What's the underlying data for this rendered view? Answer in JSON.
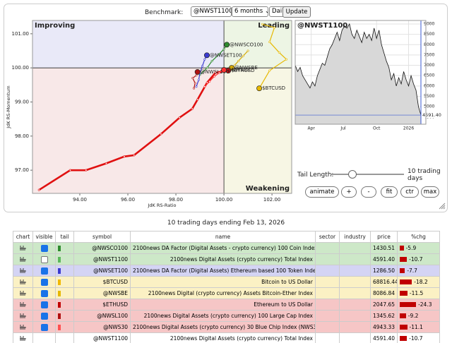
{
  "controls": {
    "benchmark_label": "Benchmark:",
    "benchmark_value": "@NWST1100",
    "period": "6 months",
    "interval": "Daily",
    "update": "Update",
    "tail_label": "Tail Length:",
    "tail_value": "10 trading days",
    "buttons": [
      "animate",
      "+",
      "-",
      "fit",
      "ctr",
      "max"
    ]
  },
  "chart_data": [
    {
      "type": "rrg",
      "xlabel": "JdK RS-Ratio",
      "ylabel": "JdK RS-Momentum",
      "quadrants": {
        "improving": "Improving",
        "leading": "Leading",
        "weakening": "Weakening"
      },
      "xlim": [
        92.03,
        102.82
      ],
      "ylim": [
        96.32,
        101.39
      ],
      "xticks": [
        {
          "value": 94,
          "label": "94.00"
        },
        {
          "value": 96,
          "label": "96.00"
        },
        {
          "value": 98,
          "label": "98.00"
        },
        {
          "value": 100,
          "label": "100.00"
        },
        {
          "value": 102,
          "label": "102.00"
        }
      ],
      "yticks": [
        {
          "value": 97,
          "label": "97.00"
        },
        {
          "value": 98,
          "label": "98.00"
        },
        {
          "value": 99,
          "label": "99.00"
        },
        {
          "value": 100,
          "label": "100.00"
        },
        {
          "value": 101,
          "label": "101.00"
        }
      ],
      "series": [
        {
          "name": "@NWSCO100",
          "color": "#2e8b2e",
          "x": [
            99.0,
            99.3,
            99.5,
            99.8,
            100.0,
            100.12
          ],
          "y": [
            99.8,
            100.0,
            100.2,
            100.4,
            100.55,
            100.68
          ]
        },
        {
          "name": "@NWSET100",
          "color": "#3a3ad0",
          "x": [
            98.85,
            98.95,
            99.0,
            99.1,
            99.2,
            99.29
          ],
          "y": [
            99.45,
            99.65,
            99.85,
            100.05,
            100.25,
            100.37
          ]
        },
        {
          "name": "$BTCUSD",
          "color": "#e6b800",
          "x": [
            101.6,
            102.1,
            101.9,
            102.3,
            102.6,
            101.9,
            101.47
          ],
          "y": [
            101.28,
            101.18,
            100.76,
            100.45,
            100.25,
            99.92,
            99.4
          ]
        },
        {
          "name": "@NWSBE",
          "color": "#d4a800",
          "x": [
            101.0,
            100.8,
            100.6,
            100.45,
            100.32
          ],
          "y": [
            100.5,
            100.35,
            100.2,
            100.08,
            100.0
          ]
        },
        {
          "name": "$ETHUSD",
          "color": "#e01010",
          "x": [
            92.3,
            93.6,
            94.26,
            95.1,
            95.85,
            96.26,
            97.38,
            98.15,
            98.68,
            98.9,
            99.3,
            99.65,
            100.18
          ],
          "y": [
            96.42,
            97.0,
            97.0,
            97.2,
            97.4,
            97.44,
            98.06,
            98.54,
            98.8,
            99.07,
            99.57,
            99.86,
            99.92
          ]
        },
        {
          "name": "@NWSL100",
          "color": "#b01010",
          "x": [
            98.75,
            98.8,
            98.7,
            98.85,
            98.9
          ],
          "y": [
            99.4,
            99.55,
            99.7,
            99.78,
            99.88
          ]
        },
        {
          "name": "@NWS30",
          "color": "#ff3030",
          "x": [
            99.2,
            99.4,
            99.6,
            99.8,
            100.0
          ],
          "y": [
            99.45,
            99.6,
            99.75,
            99.85,
            99.94
          ]
        }
      ]
    },
    {
      "type": "line",
      "title": "@NWST1100",
      "color": "#111111",
      "xlim": [
        0,
        51
      ],
      "ylim": [
        4150,
        9170
      ],
      "xticks": [
        {
          "value": 6.5,
          "label": "Apr"
        },
        {
          "value": 19.5,
          "label": "Jul"
        },
        {
          "value": 33,
          "label": "Oct"
        },
        {
          "value": 46,
          "label": "2026"
        }
      ],
      "yticks": [
        4500,
        5000,
        5500,
        6000,
        6500,
        7000,
        7500,
        8000,
        8500,
        9000
      ],
      "values": [
        7000,
        6700,
        6900,
        6500,
        6300,
        6100,
        5900,
        6200,
        6000,
        6500,
        6800,
        7100,
        7000,
        7400,
        7800,
        8000,
        8300,
        8600,
        8200,
        8700,
        8900,
        8800,
        9000,
        8500,
        8300,
        8700,
        8400,
        8100,
        8600,
        8300,
        8500,
        8200,
        8800,
        8300,
        8700,
        8000,
        7600,
        7200,
        6900,
        6300,
        6600,
        6000,
        6400,
        6100,
        6700,
        6300,
        6000,
        6500,
        6100,
        5800,
        5000,
        4591.4
      ],
      "last_value_label": "4591.40"
    }
  ],
  "table": {
    "caption": "10 trading days ending Feb 13, 2026",
    "headers": [
      "chart",
      "visible",
      "tail",
      "symbol",
      "name",
      "sector",
      "industry",
      "price",
      "%chg"
    ],
    "rows": [
      {
        "symbol": "@NWSCO100",
        "name": "2100news DA Factor (Digital Assets - crypto currency) 100 Coin Index",
        "price": "1430.51",
        "chg": -5.9,
        "visible": true,
        "bg": "#cde8c8",
        "tail_color": "#2e8b2e"
      },
      {
        "symbol": "@NWST1100",
        "name": "2100news Digital Assets (crypto currency) Total Index",
        "price": "4591.40",
        "chg": -10.7,
        "visible": false,
        "bg": "#cde8c8",
        "tail_color": "#5cb85c"
      },
      {
        "symbol": "@NWSET100",
        "name": "2100news DA Factor (Digital Assets) Ethereum based 100 Token Index",
        "price": "1286.50",
        "chg": -7.7,
        "visible": true,
        "bg": "#d4d4f4",
        "tail_color": "#3a3ad0"
      },
      {
        "symbol": "$BTCUSD",
        "name": "Bitcoin to US Dollar",
        "price": "68816.44",
        "chg": -18.2,
        "visible": true,
        "bg": "#fbf1c4",
        "tail_color": "#f0b800"
      },
      {
        "symbol": "@NWSBE",
        "name": "2100news Digital (crypto currency) Assets Bitcoin-Ether Index",
        "price": "8086.84",
        "chg": -11.5,
        "visible": true,
        "bg": "#fbf1c4",
        "tail_color": "#e6b800"
      },
      {
        "symbol": "$ETHUSD",
        "name": "Ethereum to US Dollar",
        "price": "2047.65",
        "chg": -24.3,
        "visible": true,
        "bg": "#f6c6c6",
        "tail_color": "#c00000"
      },
      {
        "symbol": "@NWSL100",
        "name": "2100news Digital Assets (crypto currency) 100 Large Cap Index",
        "price": "1345.62",
        "chg": -9.2,
        "visible": true,
        "bg": "#f6c6c6",
        "tail_color": "#b01010"
      },
      {
        "symbol": "@NWS30",
        "name": "2100news Digital Assets (crypto currency) 30 Blue Chip Index (NWS30)",
        "price": "4943.33",
        "chg": -11.1,
        "visible": true,
        "bg": "#f6c6c6",
        "tail_color": "#ff5050"
      },
      {
        "symbol": "@NWST1100",
        "name": "2100news Digital Assets (crypto currency) Total Index",
        "price": "4591.40",
        "chg": -10.7,
        "visible": null,
        "bg": "#ffffff",
        "tail_color": null
      }
    ]
  }
}
